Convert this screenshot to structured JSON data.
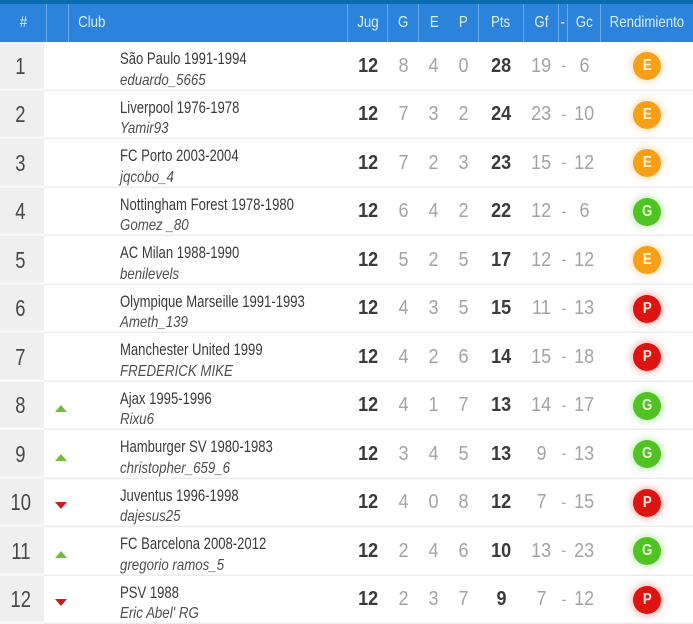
{
  "table_title": "league-standings",
  "colors": {
    "top_accent": "#0a6dad",
    "header_bg": "#2b83dc",
    "header_text": "#d8effc",
    "badge_excellent": "#f5a018",
    "badge_good": "#4ec321",
    "badge_poor": "#dd1410",
    "arrow_up": "#6fbf3a",
    "arrow_down": "#c41f1f"
  },
  "header": {
    "position_label": "#",
    "club_label": "Club",
    "jug_label": "Jug",
    "g_label": "G",
    "e_label": "E",
    "p_label": "P",
    "pts_label": "Pts",
    "gf_label": "Gf",
    "dash_label": "-",
    "gc_label": "Gc",
    "rend_label": "Rendimiento"
  },
  "rows": [
    {
      "pos": "1",
      "movement": "none",
      "club": "São Paulo 1991-1994",
      "user": "eduardo_5665",
      "jug": "12",
      "g": "8",
      "e": "4",
      "p": "0",
      "pts": "28",
      "gf": "19",
      "dash": "-",
      "gc": "6",
      "rend": "E"
    },
    {
      "pos": "2",
      "movement": "none",
      "club": "Liverpool 1976-1978",
      "user": "Yamir93",
      "jug": "12",
      "g": "7",
      "e": "3",
      "p": "2",
      "pts": "24",
      "gf": "23",
      "dash": "-",
      "gc": "10",
      "rend": "E"
    },
    {
      "pos": "3",
      "movement": "none",
      "club": "FC Porto 2003-2004",
      "user": "jqcobo_4",
      "jug": "12",
      "g": "7",
      "e": "2",
      "p": "3",
      "pts": "23",
      "gf": "15",
      "dash": "-",
      "gc": "12",
      "rend": "E"
    },
    {
      "pos": "4",
      "movement": "none",
      "club": "Nottingham Forest 1978-1980",
      "user": "Gomez _80",
      "jug": "12",
      "g": "6",
      "e": "4",
      "p": "2",
      "pts": "22",
      "gf": "12",
      "dash": "-",
      "gc": "6",
      "rend": "G"
    },
    {
      "pos": "5",
      "movement": "none",
      "club": "AC Milan 1988-1990",
      "user": "benilevels",
      "jug": "12",
      "g": "5",
      "e": "2",
      "p": "5",
      "pts": "17",
      "gf": "12",
      "dash": "-",
      "gc": "12",
      "rend": "E"
    },
    {
      "pos": "6",
      "movement": "none",
      "club": "Olympique Marseille 1991-1993",
      "user": "Ameth_139",
      "jug": "12",
      "g": "4",
      "e": "3",
      "p": "5",
      "pts": "15",
      "gf": "11",
      "dash": "-",
      "gc": "13",
      "rend": "P"
    },
    {
      "pos": "7",
      "movement": "none",
      "club": "Manchester United 1999",
      "user": "FREDERICK MIKE",
      "jug": "12",
      "g": "4",
      "e": "2",
      "p": "6",
      "pts": "14",
      "gf": "15",
      "dash": "-",
      "gc": "18",
      "rend": "P"
    },
    {
      "pos": "8",
      "movement": "up",
      "club": "Ajax 1995-1996",
      "user": "Rixu6",
      "jug": "12",
      "g": "4",
      "e": "1",
      "p": "7",
      "pts": "13",
      "gf": "14",
      "dash": "-",
      "gc": "17",
      "rend": "G"
    },
    {
      "pos": "9",
      "movement": "up",
      "club": "Hamburger SV 1980-1983",
      "user": "christopher_659_6",
      "jug": "12",
      "g": "3",
      "e": "4",
      "p": "5",
      "pts": "13",
      "gf": "9",
      "dash": "-",
      "gc": "13",
      "rend": "G"
    },
    {
      "pos": "10",
      "movement": "down",
      "club": "Juventus 1996-1998",
      "user": "dajesus25",
      "jug": "12",
      "g": "4",
      "e": "0",
      "p": "8",
      "pts": "12",
      "gf": "7",
      "dash": "-",
      "gc": "15",
      "rend": "P"
    },
    {
      "pos": "11",
      "movement": "up",
      "club": "FC Barcelona 2008-2012",
      "user": "gregorio ramos_5",
      "jug": "12",
      "g": "2",
      "e": "4",
      "p": "6",
      "pts": "10",
      "gf": "13",
      "dash": "-",
      "gc": "23",
      "rend": "G"
    },
    {
      "pos": "12",
      "movement": "down",
      "club": "PSV 1988",
      "user": "Eric Abel' RG",
      "jug": "12",
      "g": "2",
      "e": "3",
      "p": "7",
      "pts": "9",
      "gf": "7",
      "dash": "-",
      "gc": "12",
      "rend": "P"
    }
  ]
}
